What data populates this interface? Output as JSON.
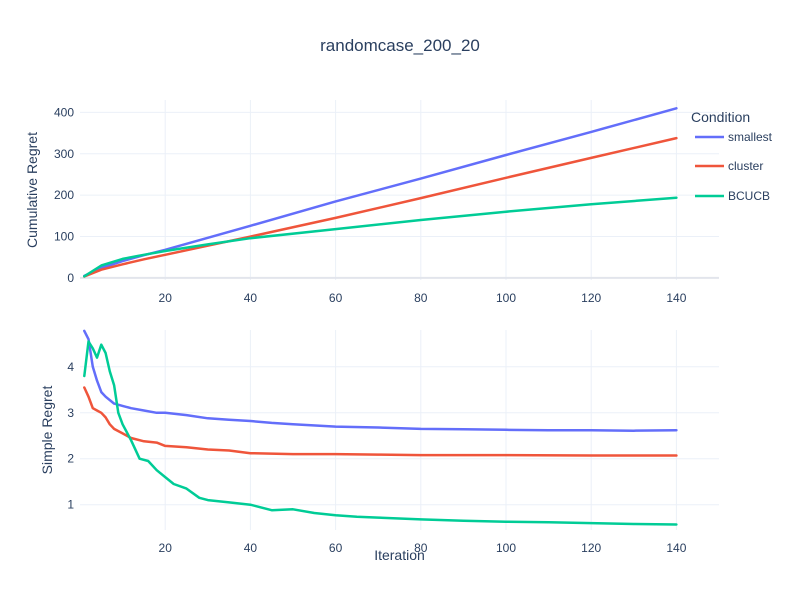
{
  "title": "randomcase_200_20",
  "legend_title": "Condition",
  "colors": {
    "smallest": "#636efa",
    "cluster": "#ef553b",
    "BCUCB": "#00cc96"
  },
  "chart_data": [
    {
      "type": "line",
      "name": "cumulative",
      "ylabel": "Cumulative Regret",
      "xlabel": "",
      "xlim": [
        0,
        150
      ],
      "ylim": [
        -5,
        430
      ],
      "xticks": [
        20,
        40,
        60,
        80,
        100,
        120,
        140
      ],
      "yticks": [
        0,
        100,
        200,
        300,
        400
      ],
      "series": [
        {
          "name": "smallest",
          "x": [
            1,
            5,
            10,
            15,
            20,
            30,
            40,
            60,
            80,
            100,
            120,
            140
          ],
          "values": [
            4.8,
            24,
            41,
            55,
            68,
            97,
            126,
            185,
            240,
            297,
            353,
            410
          ]
        },
        {
          "name": "cluster",
          "x": [
            1,
            5,
            10,
            15,
            20,
            30,
            40,
            60,
            80,
            100,
            120,
            140
          ],
          "values": [
            3.5,
            20,
            33,
            45,
            56,
            78,
            100,
            145,
            193,
            242,
            290,
            338
          ]
        },
        {
          "name": "BCUCB",
          "x": [
            1,
            5,
            10,
            15,
            20,
            30,
            40,
            60,
            80,
            100,
            120,
            140
          ],
          "values": [
            4,
            30,
            46,
            56,
            65,
            81,
            96,
            118,
            140,
            160,
            178,
            194
          ]
        }
      ]
    },
    {
      "type": "line",
      "name": "simple",
      "ylabel": "Simple Regret",
      "xlabel": "Iteration",
      "xlim": [
        0,
        150
      ],
      "ylim": [
        0.45,
        4.8
      ],
      "xticks": [
        20,
        40,
        60,
        80,
        100,
        120,
        140
      ],
      "yticks": [
        1,
        2,
        3,
        4
      ],
      "series": [
        {
          "name": "smallest",
          "x": [
            1,
            2,
            3,
            4,
            5,
            6,
            8,
            10,
            12,
            15,
            18,
            20,
            25,
            30,
            35,
            40,
            45,
            50,
            60,
            70,
            80,
            90,
            100,
            110,
            120,
            130,
            140
          ],
          "values": [
            4.78,
            4.6,
            4.0,
            3.7,
            3.45,
            3.35,
            3.2,
            3.15,
            3.1,
            3.05,
            3.0,
            3.0,
            2.95,
            2.88,
            2.85,
            2.82,
            2.78,
            2.75,
            2.7,
            2.68,
            2.65,
            2.64,
            2.63,
            2.62,
            2.62,
            2.61,
            2.62
          ]
        },
        {
          "name": "cluster",
          "x": [
            1,
            2,
            3,
            4,
            5,
            6,
            7,
            8,
            10,
            12,
            15,
            18,
            20,
            25,
            30,
            35,
            40,
            50,
            60,
            70,
            80,
            100,
            120,
            140
          ],
          "values": [
            3.55,
            3.35,
            3.1,
            3.05,
            3.0,
            2.9,
            2.75,
            2.65,
            2.55,
            2.45,
            2.38,
            2.35,
            2.28,
            2.25,
            2.2,
            2.18,
            2.12,
            2.1,
            2.1,
            2.09,
            2.08,
            2.08,
            2.07,
            2.07
          ]
        },
        {
          "name": "BCUCB",
          "x": [
            1,
            2,
            3,
            4,
            5,
            6,
            7,
            8,
            9,
            10,
            12,
            14,
            16,
            18,
            20,
            22,
            25,
            28,
            30,
            35,
            40,
            45,
            50,
            55,
            60,
            65,
            70,
            80,
            90,
            100,
            110,
            120,
            130,
            140
          ],
          "values": [
            3.8,
            4.55,
            4.4,
            4.2,
            4.48,
            4.3,
            3.9,
            3.6,
            3.0,
            2.75,
            2.4,
            2.0,
            1.95,
            1.75,
            1.6,
            1.45,
            1.35,
            1.15,
            1.1,
            1.05,
            1.0,
            0.88,
            0.9,
            0.82,
            0.77,
            0.74,
            0.72,
            0.68,
            0.65,
            0.63,
            0.62,
            0.6,
            0.58,
            0.57
          ]
        }
      ]
    }
  ]
}
